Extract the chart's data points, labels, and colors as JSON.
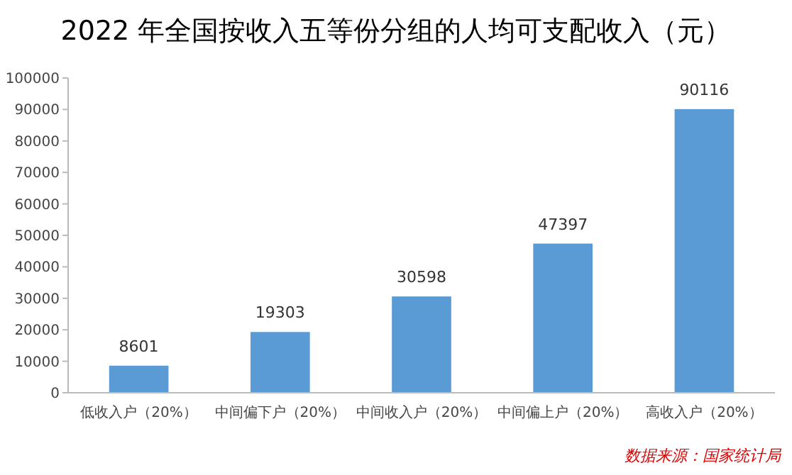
{
  "chart_data": {
    "type": "bar",
    "title": "2022 年全国按收入五等份分组的人均可支配收入（元）",
    "categories": [
      "低收入户（20%）",
      "中间偏下户（20%）",
      "中间收入户（20%）",
      "中间偏上户（20%）",
      "高收入户（20%）"
    ],
    "values": [
      8601,
      19303,
      30598,
      47397,
      90116
    ],
    "color": "#5b9bd5",
    "ylim": [
      0,
      100000
    ],
    "yticks": [
      0,
      10000,
      20000,
      30000,
      40000,
      50000,
      60000,
      70000,
      80000,
      90000,
      100000
    ],
    "grid": false,
    "data_labels": true,
    "annotations": [
      "数据来源：国家统计局"
    ]
  }
}
